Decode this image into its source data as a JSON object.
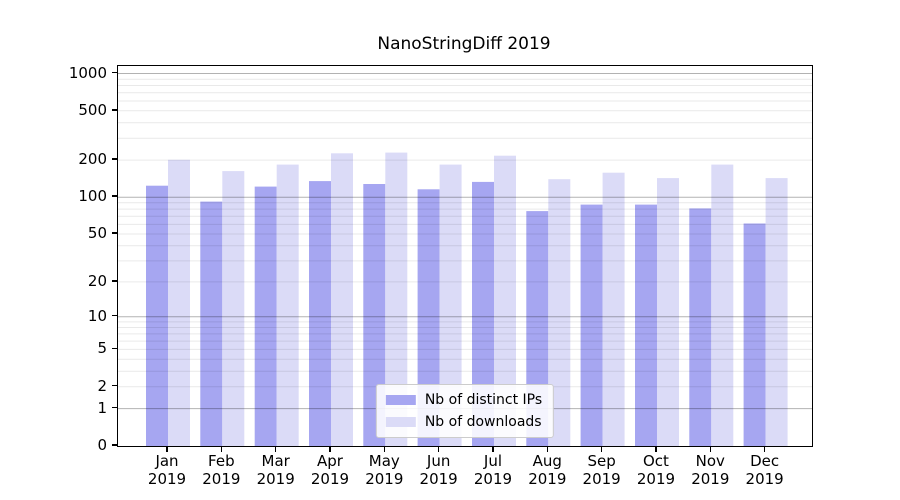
{
  "title": "NanoStringDiff 2019",
  "chart_data": {
    "type": "bar",
    "title": "NanoStringDiff 2019",
    "xlabel": "",
    "ylabel": "",
    "categories": [
      "Jan",
      "Feb",
      "Mar",
      "Apr",
      "May",
      "Jun",
      "Jul",
      "Aug",
      "Sep",
      "Oct",
      "Nov",
      "Dec"
    ],
    "category_year": "2019",
    "series": [
      {
        "name": "Nb of distinct IPs",
        "color": "#a6a6f1",
        "values": [
          124,
          92,
          122,
          135,
          128,
          116,
          133,
          77,
          87,
          87,
          81,
          61
        ]
      },
      {
        "name": "Nb of downloads",
        "color": "#dbdbf7",
        "values": [
          201,
          163,
          184,
          227,
          230,
          184,
          217,
          140,
          158,
          143,
          184,
          143
        ]
      }
    ],
    "y_scale": "log10(1+v)",
    "y_ticks": [
      0,
      1,
      2,
      5,
      10,
      20,
      50,
      100,
      200,
      500,
      1000
    ],
    "y_top_value": 1150,
    "grid": true,
    "legend_position": "lower center"
  },
  "legend": {
    "items": [
      {
        "label": "Nb of distinct IPs"
      },
      {
        "label": "Nb of downloads"
      }
    ]
  },
  "colors": {
    "ips_bar": "#a6a6f1",
    "downloads_bar": "#dbdbf7",
    "axis": "#000000",
    "major_grid": "rgba(0,0,0,0.30)",
    "minor_grid": "rgba(0,0,0,0.085)",
    "legend_border": "#cccccc"
  }
}
